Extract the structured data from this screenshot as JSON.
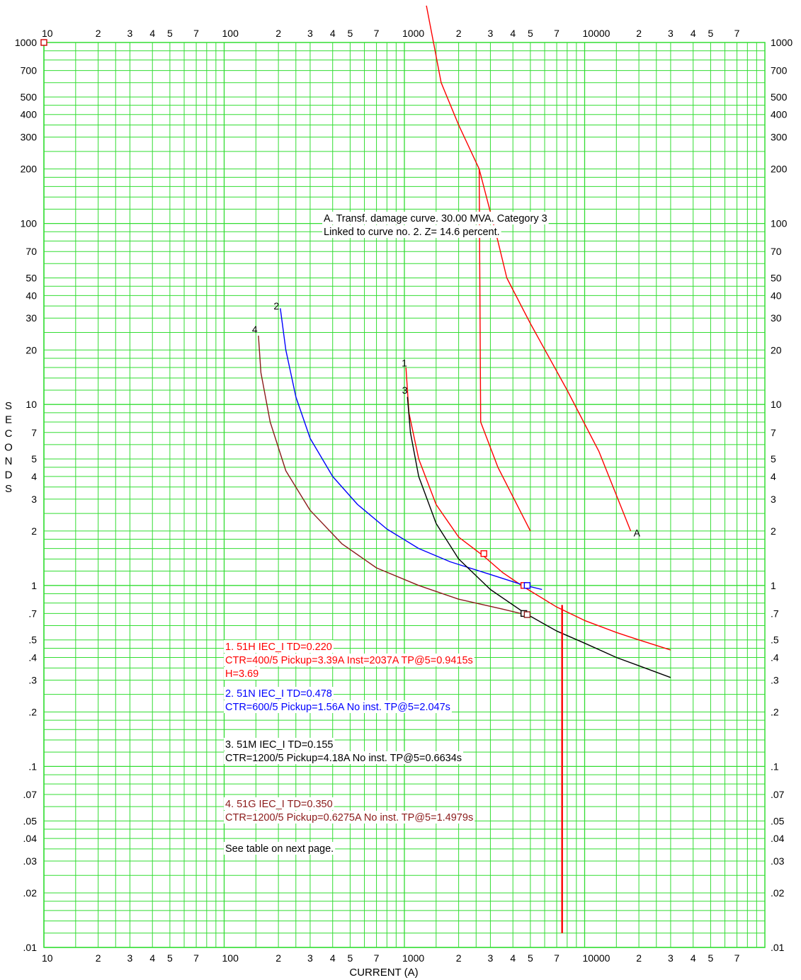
{
  "chart_data": {
    "type": "line",
    "xscale": "log",
    "yscale": "log",
    "xlim": [
      10,
      100000
    ],
    "ylim": [
      0.01,
      1000
    ],
    "xlabel": "CURRENT (A)",
    "ylabel": "SECONDS",
    "grid": true,
    "grid_color": "#33dd33",
    "x_tick_labels": [
      {
        "x": 10,
        "label": "10"
      },
      {
        "x": 20,
        "label": "2"
      },
      {
        "x": 30,
        "label": "3"
      },
      {
        "x": 40,
        "label": "4"
      },
      {
        "x": 50,
        "label": "5"
      },
      {
        "x": 70,
        "label": "7"
      },
      {
        "x": 100,
        "label": "100"
      },
      {
        "x": 200,
        "label": "2"
      },
      {
        "x": 300,
        "label": "3"
      },
      {
        "x": 400,
        "label": "4"
      },
      {
        "x": 500,
        "label": "5"
      },
      {
        "x": 700,
        "label": "7"
      },
      {
        "x": 1000,
        "label": "1000"
      },
      {
        "x": 2000,
        "label": "2"
      },
      {
        "x": 3000,
        "label": "3"
      },
      {
        "x": 4000,
        "label": "4"
      },
      {
        "x": 5000,
        "label": "5"
      },
      {
        "x": 7000,
        "label": "7"
      },
      {
        "x": 10000,
        "label": "10000"
      },
      {
        "x": 20000,
        "label": "2"
      },
      {
        "x": 30000,
        "label": "3"
      },
      {
        "x": 40000,
        "label": "4"
      },
      {
        "x": 50000,
        "label": "5"
      },
      {
        "x": 70000,
        "label": "7"
      }
    ],
    "y_tick_labels": [
      {
        "y": 1000,
        "label": "1000"
      },
      {
        "y": 700,
        "label": "700"
      },
      {
        "y": 500,
        "label": "500"
      },
      {
        "y": 400,
        "label": "400"
      },
      {
        "y": 300,
        "label": "300"
      },
      {
        "y": 200,
        "label": "200"
      },
      {
        "y": 100,
        "label": "100"
      },
      {
        "y": 70,
        "label": "70"
      },
      {
        "y": 50,
        "label": "50"
      },
      {
        "y": 40,
        "label": "40"
      },
      {
        "y": 30,
        "label": "30"
      },
      {
        "y": 20,
        "label": "20"
      },
      {
        "y": 10,
        "label": "10"
      },
      {
        "y": 7,
        "label": "7"
      },
      {
        "y": 5,
        "label": "5"
      },
      {
        "y": 4,
        "label": "4"
      },
      {
        "y": 3,
        "label": "3"
      },
      {
        "y": 2,
        "label": "2"
      },
      {
        "y": 1,
        "label": "1"
      },
      {
        "y": 0.7,
        "label": ".7"
      },
      {
        "y": 0.5,
        "label": ".5"
      },
      {
        "y": 0.4,
        "label": ".4"
      },
      {
        "y": 0.3,
        "label": ".3"
      },
      {
        "y": 0.2,
        "label": ".2"
      },
      {
        "y": 0.1,
        "label": ".1"
      },
      {
        "y": 0.07,
        "label": ".07"
      },
      {
        "y": 0.05,
        "label": ".05"
      },
      {
        "y": 0.04,
        "label": ".04"
      },
      {
        "y": 0.03,
        "label": ".03"
      },
      {
        "y": 0.02,
        "label": ".02"
      },
      {
        "y": 0.01,
        "label": ".01"
      }
    ],
    "series": [
      {
        "name": "1",
        "color": "#ff0000",
        "points": [
          [
            1020,
            16
          ],
          [
            1060,
            9
          ],
          [
            1200,
            5
          ],
          [
            1500,
            2.8
          ],
          [
            2000,
            1.85
          ],
          [
            2760,
            1.45
          ],
          [
            3500,
            1.18
          ],
          [
            4600,
            0.98
          ],
          [
            7000,
            0.76
          ],
          [
            10000,
            0.64
          ],
          [
            15000,
            0.55
          ],
          [
            20000,
            0.5
          ],
          [
            30000,
            0.44
          ]
        ]
      },
      {
        "name": "2",
        "color": "#0000ff",
        "points": [
          [
            205,
            34
          ],
          [
            220,
            20
          ],
          [
            250,
            11
          ],
          [
            300,
            6.5
          ],
          [
            400,
            4.0
          ],
          [
            550,
            2.8
          ],
          [
            800,
            2.05
          ],
          [
            1200,
            1.6
          ],
          [
            1800,
            1.35
          ],
          [
            3000,
            1.15
          ],
          [
            4500,
            1.01
          ],
          [
            5800,
            0.95
          ]
        ]
      },
      {
        "name": "3",
        "color": "#000000",
        "points": [
          [
            1040,
            11
          ],
          [
            1080,
            7
          ],
          [
            1200,
            4
          ],
          [
            1500,
            2.2
          ],
          [
            2000,
            1.4
          ],
          [
            3000,
            0.95
          ],
          [
            4700,
            0.7
          ],
          [
            7000,
            0.56
          ],
          [
            10000,
            0.48
          ],
          [
            15000,
            0.4
          ],
          [
            20000,
            0.36
          ],
          [
            30000,
            0.31
          ]
        ]
      },
      {
        "name": "4",
        "color": "#8b1a1a",
        "points": [
          [
            155,
            24
          ],
          [
            160,
            15
          ],
          [
            180,
            8
          ],
          [
            220,
            4.3
          ],
          [
            300,
            2.6
          ],
          [
            450,
            1.7
          ],
          [
            700,
            1.25
          ],
          [
            1200,
            1.0
          ],
          [
            2000,
            0.84
          ],
          [
            3500,
            0.74
          ],
          [
            4700,
            0.69
          ]
        ]
      },
      {
        "name": "A",
        "color": "#ff0000",
        "points": [
          [
            1450,
            1000
          ],
          [
            1600,
            600
          ],
          [
            2000,
            350
          ],
          [
            2600,
            200
          ],
          [
            3300,
            80
          ],
          [
            3700,
            50
          ],
          [
            5000,
            28
          ],
          [
            8000,
            12
          ],
          [
            12000,
            5.5
          ],
          [
            18000,
            2.0
          ]
        ]
      },
      {
        "name": "",
        "color": "#ff0000",
        "points": [
          [
            2600,
            200
          ],
          [
            2650,
            8
          ],
          [
            3300,
            4.5
          ],
          [
            5000,
            2.0
          ]
        ]
      },
      {
        "name": "",
        "color": "#ff0000",
        "points": [
          [
            7500,
            0.78
          ],
          [
            7500,
            0.012
          ]
        ]
      }
    ],
    "markers": [
      {
        "x": 10,
        "y": 1000,
        "color": "#cc0000"
      },
      {
        "x": 2760,
        "y": 1.5,
        "color": "#ff0000"
      },
      {
        "x": 4600,
        "y": 1.0,
        "color": "#ff0000"
      },
      {
        "x": 4800,
        "y": 1.0,
        "color": "#0000ff"
      },
      {
        "x": 4600,
        "y": 0.7,
        "color": "#000000"
      },
      {
        "x": 4800,
        "y": 0.69,
        "color": "#8b1a1a"
      }
    ],
    "curve_labels": [
      {
        "text": "2",
        "x": 195,
        "y": 35
      },
      {
        "text": "4",
        "x": 148,
        "y": 26
      },
      {
        "text": "1",
        "x": 1000,
        "y": 17
      },
      {
        "text": "3",
        "x": 1005,
        "y": 12
      },
      {
        "text": "A",
        "x": 19500,
        "y": 1.95
      }
    ],
    "annotations": [
      {
        "lines": [
          "A. Transf. damage curve.  30.00 MVA. Category 3",
          "Linked to curve no. 2.  Z= 14.6 percent."
        ],
        "color": "#000000"
      },
      {
        "lines": [
          " 1. 51H  IEC_I  TD=0.220",
          "CTR=400/5 Pickup=3.39A Inst=2037A TP@5=0.9415s",
          " H=3.69"
        ],
        "color": "#ff0000"
      },
      {
        "lines": [
          " 2. 51N  IEC_I  TD=0.478",
          "CTR=600/5 Pickup=1.56A No inst. TP@5=2.047s"
        ],
        "color": "#0000ff"
      },
      {
        "lines": [
          " 3. 51M  IEC_I  TD=0.155",
          "CTR=1200/5 Pickup=4.18A No inst. TP@5=0.6634s"
        ],
        "color": "#000000"
      },
      {
        "lines": [
          " 4. 51G  IEC_I  TD=0.350",
          "CTR=1200/5 Pickup=0.6275A No inst. TP@5=1.4979s"
        ],
        "color": "#8b1a1a"
      },
      {
        "lines": [
          "See table on next page."
        ],
        "color": "#000000"
      }
    ]
  }
}
